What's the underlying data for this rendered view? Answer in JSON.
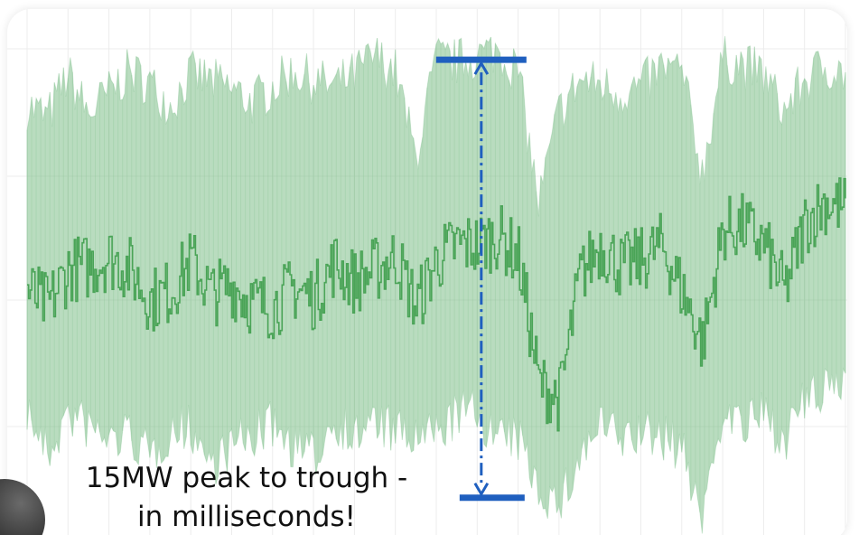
{
  "colors": {
    "band": "#7fc08b",
    "line": "#4aa457",
    "grid": "#ececec",
    "marker": "#1f5fbf",
    "text": "#111111"
  },
  "annotation": {
    "line1": "15MW peak to trough -",
    "line2": "in milliseconds!",
    "marker_style": "vertical dash-dot double arrow with horizontal caps at peak and trough"
  },
  "chart_data": {
    "type": "area",
    "title": "",
    "xlabel": "",
    "ylabel": "",
    "grid": true,
    "legend": "none",
    "x_range": [
      0,
      100
    ],
    "y_range": [
      -8,
      8
    ],
    "x": [
      0,
      2.5,
      5,
      7.5,
      10,
      12.5,
      15,
      17.5,
      20,
      22.5,
      25,
      27.5,
      30,
      32.5,
      35,
      37.5,
      40,
      42.5,
      45,
      47.5,
      50,
      52.5,
      55,
      57.5,
      60,
      62.5,
      65,
      67.5,
      70,
      72.5,
      75,
      77.5,
      80,
      82.5,
      85,
      87.5,
      90,
      92.5,
      95,
      97.5,
      100
    ],
    "series": [
      {
        "role": "envelope-upper",
        "values": [
          5.2,
          4.8,
          6.2,
          4.9,
          5.6,
          6.3,
          5.9,
          5.2,
          6.2,
          6.0,
          5.7,
          5.3,
          5.8,
          6.3,
          6.0,
          5.8,
          6.2,
          6.8,
          6.3,
          3.5,
          6.7,
          6.6,
          6.8,
          7.0,
          6.3,
          2.0,
          5.0,
          6.0,
          5.9,
          5.6,
          5.8,
          6.4,
          6.3,
          3.0,
          6.7,
          6.5,
          6.2,
          5.0,
          6.0,
          6.5,
          6.2
        ]
      },
      {
        "role": "main",
        "values": [
          -0.5,
          -1.0,
          0.2,
          0.3,
          0.6,
          0.2,
          -0.8,
          -0.5,
          0.5,
          -0.6,
          -0.3,
          -0.9,
          -1.0,
          -0.4,
          -0.7,
          0.4,
          -0.2,
          0.2,
          0.6,
          -1.0,
          0.5,
          1.0,
          1.0,
          1.3,
          0.6,
          -3.5,
          -4.0,
          0.0,
          1.0,
          0.3,
          0.5,
          1.0,
          -0.5,
          -2.2,
          1.5,
          1.6,
          1.0,
          -0.5,
          1.7,
          2.4,
          2.2
        ]
      },
      {
        "role": "envelope-lower",
        "values": [
          -4.0,
          -5.5,
          -4.2,
          -4.6,
          -5.0,
          -4.8,
          -5.6,
          -4.7,
          -4.6,
          -5.8,
          -5.2,
          -4.9,
          -4.5,
          -5.2,
          -5.6,
          -4.3,
          -4.9,
          -4.4,
          -4.8,
          -5.0,
          -4.8,
          -4.2,
          -4.1,
          -5.0,
          -5.0,
          -6.5,
          -7.2,
          -5.6,
          -4.5,
          -5.0,
          -4.8,
          -4.9,
          -5.3,
          -7.5,
          -4.0,
          -4.6,
          -4.2,
          -5.0,
          -3.8,
          -3.5,
          -3.0
        ]
      }
    ],
    "annotation": {
      "peak": {
        "x": 55.5,
        "y": 7.0
      },
      "trough": {
        "x": 55.5,
        "y": -7.2
      },
      "label": "15MW peak to trough - in milliseconds!"
    }
  }
}
